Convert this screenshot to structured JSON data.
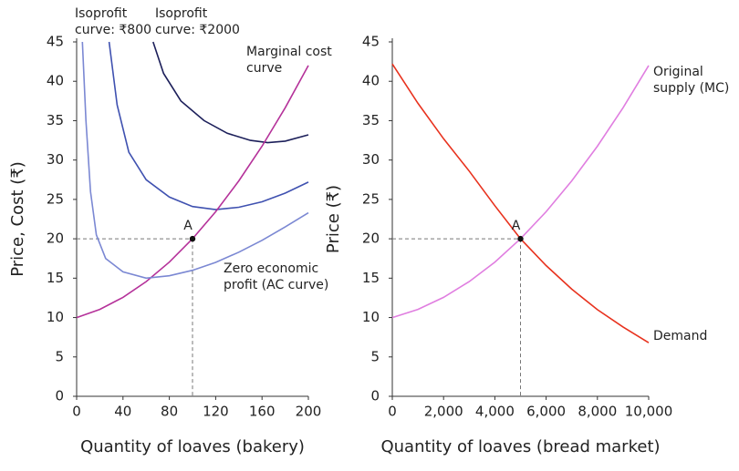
{
  "chart_data": [
    {
      "type": "line",
      "y_label": "Price, Cost (₹)",
      "x_label": "Quantity of loaves (bakery)",
      "xlim": [
        0,
        200
      ],
      "ylim": [
        0,
        45
      ],
      "xticks": [
        0,
        40,
        80,
        120,
        160,
        200
      ],
      "yticks": [
        0,
        5,
        10,
        15,
        20,
        25,
        30,
        35,
        40,
        45
      ],
      "grid": false,
      "series": [
        {
          "name": "Isoprofit curve: ₹800",
          "color": "#3f51b0",
          "x": [
            28,
            35,
            45,
            60,
            80,
            100,
            120,
            140,
            160,
            180,
            200
          ],
          "values": [
            45,
            37,
            31,
            27.5,
            25.3,
            24.1,
            23.7,
            24,
            24.7,
            25.8,
            27.2
          ]
        },
        {
          "name": "Isoprofit curve: ₹2000",
          "color": "#1c1f5a",
          "x": [
            66,
            75,
            90,
            110,
            130,
            150,
            165,
            180,
            200
          ],
          "values": [
            45,
            41,
            37.5,
            35,
            33.4,
            32.5,
            32.2,
            32.4,
            33.2
          ]
        },
        {
          "name": "Marginal cost curve",
          "color": "#b5329a",
          "x": [
            0,
            20,
            40,
            60,
            80,
            100,
            120,
            140,
            160,
            180,
            200
          ],
          "values": [
            10,
            11.04,
            12.56,
            14.56,
            17.04,
            20,
            23.44,
            27.36,
            31.76,
            36.64,
            42
          ]
        },
        {
          "name": "Zero economic profit (AC curve)",
          "color": "#7b88d3",
          "x": [
            5,
            8,
            12,
            17,
            25,
            40,
            60,
            80,
            100,
            120,
            140,
            160,
            180,
            200
          ],
          "values": [
            45,
            35,
            26,
            20.5,
            17.5,
            15.8,
            15,
            15.3,
            16,
            17,
            18.3,
            19.8,
            21.5,
            23.3
          ]
        }
      ],
      "annotations": [
        {
          "text": "A",
          "x": 100,
          "y": 20
        }
      ]
    },
    {
      "type": "line",
      "y_label": "Price (₹)",
      "x_label": "Quantity of loaves (bread market)",
      "xlim": [
        0,
        10000
      ],
      "ylim": [
        0,
        45
      ],
      "xticks": [
        0,
        {
          "value": 2000,
          "label": "2,000"
        },
        {
          "value": 4000,
          "label": "4,000"
        },
        {
          "value": 6000,
          "label": "6,000"
        },
        {
          "value": 8000,
          "label": "8,000"
        },
        {
          "value": 10000,
          "label": "10,000"
        }
      ],
      "yticks": [
        0,
        5,
        10,
        15,
        20,
        25,
        30,
        35,
        40,
        45
      ],
      "grid": false,
      "series": [
        {
          "name": "Original supply (MC)",
          "color": "#e07ee0",
          "x": [
            0,
            1000,
            2000,
            3000,
            4000,
            5000,
            6000,
            7000,
            8000,
            9000,
            10000
          ],
          "values": [
            10,
            11.04,
            12.56,
            14.56,
            17.04,
            20,
            23.44,
            27.36,
            31.76,
            36.64,
            42
          ]
        },
        {
          "name": "Demand",
          "color": "#e8321e",
          "x": [
            0,
            1000,
            2000,
            3000,
            4000,
            5000,
            6000,
            7000,
            8000,
            9000,
            10000
          ],
          "values": [
            42.2,
            37.2,
            32.7,
            28.6,
            24.2,
            20,
            16.6,
            13.6,
            11,
            8.8,
            6.8
          ]
        }
      ],
      "annotations": [
        {
          "text": "A",
          "x": 5000,
          "y": 20
        }
      ]
    }
  ]
}
